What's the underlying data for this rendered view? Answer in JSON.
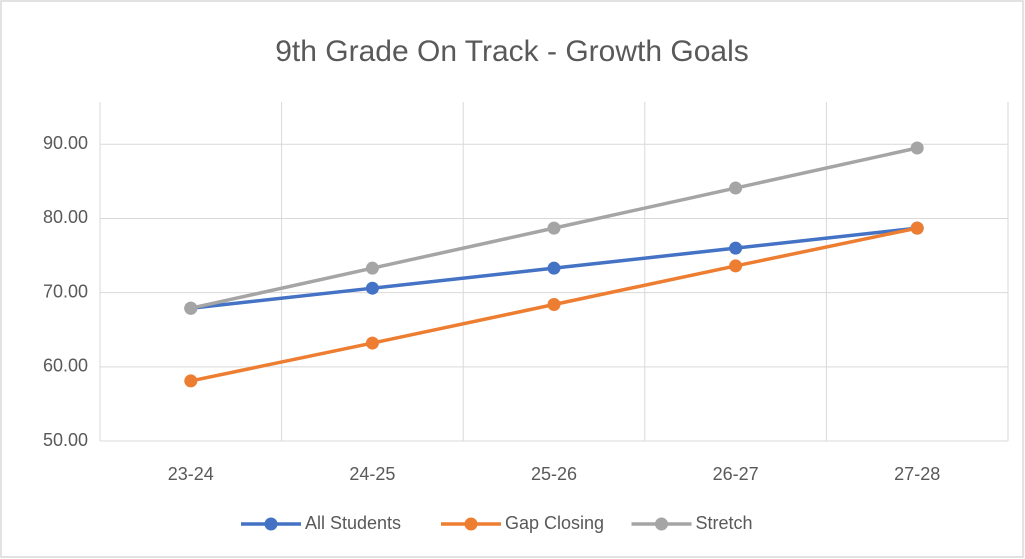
{
  "chart_data": {
    "type": "line",
    "title": "9th Grade On Track - Growth Goals",
    "categories": [
      "23-24",
      "24-25",
      "25-26",
      "26-27",
      "27-28"
    ],
    "series": [
      {
        "name": "All Students",
        "color": "#4472c4",
        "values": [
          67.9,
          70.6,
          73.3,
          76.0,
          78.7
        ]
      },
      {
        "name": "Gap Closing",
        "color": "#ed7d31",
        "values": [
          58.1,
          63.2,
          68.4,
          73.6,
          78.7
        ]
      },
      {
        "name": "Stretch",
        "color": "#a5a5a5",
        "values": [
          67.9,
          73.3,
          78.7,
          84.1,
          89.5
        ]
      }
    ],
    "ylim": [
      50,
      95.7
    ],
    "yticks": [
      {
        "value": 50,
        "label": "50.00"
      },
      {
        "value": 60,
        "label": "60.00"
      },
      {
        "value": 70,
        "label": "70.00"
      },
      {
        "value": 80,
        "label": "80.00"
      },
      {
        "value": 90,
        "label": "90.00"
      }
    ],
    "grid": true,
    "legend": "bottom"
  }
}
